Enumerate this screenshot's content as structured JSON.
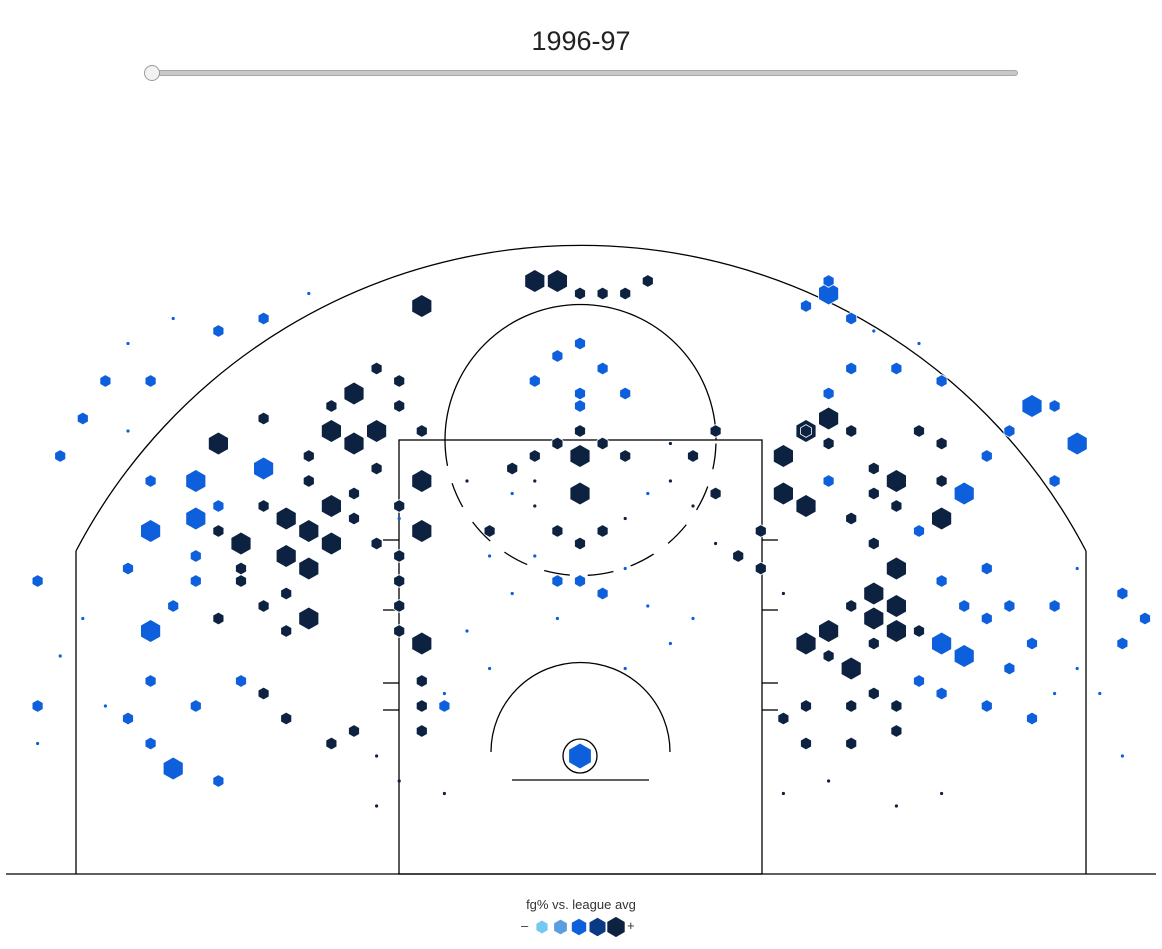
{
  "season": {
    "label": "1996-97",
    "slider_position": 0.0
  },
  "legend": {
    "title": "fg% vs. league avg",
    "minus": "–",
    "plus": "+",
    "swatches": [
      "#74c8f2",
      "#5b9ee0",
      "#0e5fdc",
      "#0a3a85",
      "#0d2240"
    ]
  },
  "colors": {
    "below": "#0e5fdc",
    "above": "#0d2240",
    "court_lines": "#000000"
  },
  "chart_data": {
    "type": "hexbin",
    "x_unit": "ft",
    "y_unit": "ft",
    "xlim": [
      -25,
      25
    ],
    "ylim": [
      -4,
      38
    ],
    "legend_placement": "bottom-center",
    "size_meaning": "shot frequency",
    "color_meaning": "fg% vs. league avg",
    "shots": [
      [
        0,
        0,
        4,
        "b"
      ],
      [
        -13,
        13,
        2,
        "k"
      ],
      [
        -12,
        15,
        3,
        "k"
      ],
      [
        -13,
        16,
        3,
        "k"
      ],
      [
        -11,
        17,
        3,
        "k"
      ],
      [
        -12,
        18,
        3,
        "k"
      ],
      [
        -13,
        19,
        3,
        "k"
      ],
      [
        -14,
        20,
        2,
        "k"
      ],
      [
        -12,
        11,
        3,
        "k"
      ],
      [
        -13,
        10,
        2,
        "k"
      ],
      [
        -14,
        12,
        2,
        "k"
      ],
      [
        -15,
        14,
        2,
        "k"
      ],
      [
        -16,
        11,
        2,
        "k"
      ],
      [
        -11,
        20,
        3,
        "k"
      ],
      [
        -10,
        19,
        2,
        "k"
      ],
      [
        -9,
        17,
        2,
        "k"
      ],
      [
        -10,
        21,
        2,
        "k"
      ],
      [
        -12,
        22,
        2,
        "k"
      ],
      [
        -9,
        23,
        2,
        "k"
      ],
      [
        -8,
        20,
        2,
        "k"
      ],
      [
        -10,
        25,
        3,
        "k"
      ],
      [
        -11,
        26,
        3,
        "k"
      ],
      [
        -12,
        24,
        2,
        "k"
      ],
      [
        -9,
        26,
        3,
        "k"
      ],
      [
        -16,
        25,
        3,
        "k"
      ],
      [
        -14,
        27,
        2,
        "k"
      ],
      [
        -11,
        28,
        2,
        "k"
      ],
      [
        -10,
        29,
        3,
        "k"
      ],
      [
        -9,
        31,
        2,
        "k"
      ],
      [
        -8,
        30,
        2,
        "k"
      ],
      [
        -8,
        28,
        2,
        "k"
      ],
      [
        -7,
        26,
        2,
        "k"
      ],
      [
        -7,
        22,
        3,
        "k"
      ],
      [
        -7,
        18,
        3,
        "k"
      ],
      [
        -16,
        18,
        2,
        "k"
      ],
      [
        -15,
        17,
        3,
        "k"
      ],
      [
        -15,
        15,
        2,
        "k"
      ],
      [
        -17,
        16,
        2,
        "b"
      ],
      [
        -17,
        14,
        2,
        "b"
      ],
      [
        -16,
        20,
        2,
        "b"
      ],
      [
        -17,
        22,
        3,
        "b"
      ],
      [
        -14,
        23,
        3,
        "b"
      ],
      [
        -19,
        10,
        3,
        "b"
      ],
      [
        -18,
        12,
        2,
        "b"
      ],
      [
        -20,
        15,
        2,
        "b"
      ],
      [
        -19,
        18,
        3,
        "b"
      ],
      [
        -17,
        19,
        3,
        "b"
      ],
      [
        -19,
        22,
        2,
        "b"
      ],
      [
        -20,
        26,
        1,
        "b"
      ],
      [
        -19,
        30,
        2,
        "b"
      ],
      [
        -21,
        30,
        2,
        "b"
      ],
      [
        -22,
        27,
        2,
        "b"
      ],
      [
        -23,
        24,
        2,
        "b"
      ],
      [
        -18,
        35,
        1,
        "b"
      ],
      [
        -20,
        33,
        1,
        "b"
      ],
      [
        -16,
        34,
        2,
        "b"
      ],
      [
        -14,
        35,
        2,
        "b"
      ],
      [
        -12,
        37,
        1,
        "b"
      ],
      [
        -7,
        36,
        3,
        "k"
      ],
      [
        -2,
        38,
        3,
        "k"
      ],
      [
        -1,
        38,
        3,
        "k"
      ],
      [
        0,
        37,
        2,
        "k"
      ],
      [
        1,
        37,
        2,
        "k"
      ],
      [
        2,
        37,
        2,
        "k"
      ],
      [
        3,
        38,
        2,
        "k"
      ],
      [
        -1,
        32,
        2,
        "b"
      ],
      [
        0,
        33,
        2,
        "b"
      ],
      [
        1,
        31,
        2,
        "b"
      ],
      [
        -2,
        30,
        2,
        "b"
      ],
      [
        0,
        29,
        2,
        "b"
      ],
      [
        2,
        29,
        2,
        "b"
      ],
      [
        0,
        28,
        2,
        "b"
      ],
      [
        0,
        26,
        2,
        "k"
      ],
      [
        -1,
        25,
        2,
        "k"
      ],
      [
        1,
        25,
        2,
        "k"
      ],
      [
        0,
        24,
        3,
        "k"
      ],
      [
        -2,
        24,
        2,
        "k"
      ],
      [
        2,
        24,
        2,
        "k"
      ],
      [
        -3,
        23,
        2,
        "k"
      ],
      [
        4,
        25,
        1,
        "k"
      ],
      [
        0,
        21,
        3,
        "k"
      ],
      [
        -2,
        20,
        1,
        "k"
      ],
      [
        2,
        19,
        1,
        "k"
      ],
      [
        -1,
        18,
        2,
        "k"
      ],
      [
        1,
        18,
        2,
        "k"
      ],
      [
        0,
        17,
        2,
        "k"
      ],
      [
        -4,
        18,
        2,
        "k"
      ],
      [
        -1,
        14,
        2,
        "b"
      ],
      [
        0,
        14,
        2,
        "b"
      ],
      [
        -4,
        16,
        1,
        "b"
      ],
      [
        1,
        13,
        2,
        "b"
      ],
      [
        -8,
        19,
        1,
        "b"
      ],
      [
        6,
        17,
        1,
        "k"
      ],
      [
        5,
        20,
        1,
        "k"
      ],
      [
        -8,
        14,
        2,
        "k"
      ],
      [
        -8,
        10,
        2,
        "k"
      ],
      [
        -7,
        9,
        3,
        "k"
      ],
      [
        -8,
        12,
        2,
        "k"
      ],
      [
        -7,
        6,
        2,
        "k"
      ],
      [
        -7,
        4,
        2,
        "k"
      ],
      [
        -8,
        16,
        2,
        "k"
      ],
      [
        -6,
        5,
        1,
        "b"
      ],
      [
        -7,
        2,
        2,
        "k"
      ],
      [
        -6,
        4,
        2,
        "b"
      ],
      [
        -9,
        0,
        1,
        "k"
      ],
      [
        -10,
        2,
        2,
        "k"
      ],
      [
        -11,
        1,
        2,
        "k"
      ],
      [
        -13,
        3,
        2,
        "k"
      ],
      [
        -14,
        5,
        2,
        "k"
      ],
      [
        9,
        24,
        3,
        "k"
      ],
      [
        10,
        26,
        3,
        "k"
      ],
      [
        11,
        25,
        2,
        "k"
      ],
      [
        9,
        21,
        3,
        "k"
      ],
      [
        10,
        20,
        3,
        "k"
      ],
      [
        11,
        22,
        2,
        "b"
      ],
      [
        13,
        23,
        2,
        "k"
      ],
      [
        13,
        21,
        2,
        "k"
      ],
      [
        14,
        20,
        2,
        "k"
      ],
      [
        15,
        18,
        2,
        "b"
      ],
      [
        16,
        19,
        3,
        "k"
      ],
      [
        12,
        19,
        2,
        "k"
      ],
      [
        13,
        17,
        2,
        "k"
      ],
      [
        14,
        15,
        3,
        "k"
      ],
      [
        13,
        13,
        3,
        "k"
      ],
      [
        14,
        12,
        3,
        "k"
      ],
      [
        13,
        11,
        3,
        "k"
      ],
      [
        12,
        12,
        2,
        "k"
      ],
      [
        11,
        10,
        3,
        "k"
      ],
      [
        10,
        9,
        3,
        "k"
      ],
      [
        11,
        8,
        2,
        "k"
      ],
      [
        12,
        7,
        3,
        "k"
      ],
      [
        13,
        9,
        2,
        "k"
      ],
      [
        14,
        10,
        3,
        "k"
      ],
      [
        15,
        10,
        2,
        "k"
      ],
      [
        16,
        9,
        3,
        "b"
      ],
      [
        17,
        8,
        3,
        "b"
      ],
      [
        15,
        6,
        2,
        "b"
      ],
      [
        16,
        5,
        2,
        "b"
      ],
      [
        17,
        12,
        2,
        "b"
      ],
      [
        18,
        15,
        2,
        "b"
      ],
      [
        19,
        12,
        2,
        "b"
      ],
      [
        18,
        11,
        2,
        "b"
      ],
      [
        16,
        14,
        2,
        "b"
      ],
      [
        19,
        7,
        2,
        "b"
      ],
      [
        18,
        4,
        2,
        "b"
      ],
      [
        20,
        3,
        2,
        "b"
      ],
      [
        21,
        5,
        1,
        "b"
      ],
      [
        22,
        7,
        1,
        "b"
      ],
      [
        20,
        9,
        2,
        "b"
      ],
      [
        21,
        12,
        2,
        "b"
      ],
      [
        22,
        15,
        1,
        "b"
      ],
      [
        17,
        21,
        3,
        "b"
      ],
      [
        18,
        24,
        2,
        "b"
      ],
      [
        19,
        26,
        2,
        "b"
      ],
      [
        20,
        28,
        3,
        "b"
      ],
      [
        21,
        28,
        2,
        "b"
      ],
      [
        22,
        25,
        3,
        "b"
      ],
      [
        21,
        22,
        2,
        "b"
      ],
      [
        11,
        29,
        2,
        "b"
      ],
      [
        12,
        31,
        2,
        "b"
      ],
      [
        14,
        31,
        2,
        "b"
      ],
      [
        16,
        30,
        2,
        "b"
      ],
      [
        15,
        33,
        1,
        "b"
      ],
      [
        13,
        34,
        1,
        "b"
      ],
      [
        12,
        35,
        2,
        "b"
      ],
      [
        11,
        37,
        3,
        "b"
      ],
      [
        11,
        38,
        2,
        "b"
      ],
      [
        10,
        36,
        2,
        "b"
      ],
      [
        11,
        27,
        3,
        "k"
      ],
      [
        10,
        26,
        2,
        "k"
      ],
      [
        12,
        26,
        2,
        "k"
      ],
      [
        15,
        26,
        2,
        "k"
      ],
      [
        16,
        25,
        2,
        "k"
      ],
      [
        16,
        22,
        2,
        "k"
      ],
      [
        14,
        22,
        3,
        "k"
      ],
      [
        9,
        3,
        2,
        "k"
      ],
      [
        10,
        4,
        2,
        "k"
      ],
      [
        12,
        4,
        2,
        "k"
      ],
      [
        13,
        5,
        2,
        "k"
      ],
      [
        14,
        4,
        2,
        "k"
      ],
      [
        14,
        2,
        2,
        "k"
      ],
      [
        12,
        1,
        2,
        "k"
      ],
      [
        10,
        1,
        2,
        "k"
      ],
      [
        9,
        13,
        1,
        "k"
      ],
      [
        8,
        18,
        2,
        "k"
      ],
      [
        8,
        15,
        2,
        "k"
      ],
      [
        7,
        16,
        2,
        "k"
      ],
      [
        6,
        26,
        2,
        "k"
      ],
      [
        6,
        21,
        2,
        "k"
      ],
      [
        5,
        24,
        2,
        "k"
      ],
      [
        4,
        22,
        1,
        "k"
      ],
      [
        -19,
        1,
        2,
        "b"
      ],
      [
        -20,
        3,
        2,
        "b"
      ],
      [
        -21,
        4,
        1,
        "b"
      ],
      [
        -19,
        6,
        2,
        "b"
      ],
      [
        -17,
        4,
        2,
        "b"
      ],
      [
        -15,
        6,
        2,
        "b"
      ],
      [
        -18,
        -1,
        3,
        "b"
      ],
      [
        -16,
        -2,
        2,
        "b"
      ],
      [
        -24,
        14,
        2,
        "b"
      ],
      [
        -24,
        4,
        2,
        "b"
      ],
      [
        -22,
        11,
        1,
        "b"
      ],
      [
        -24,
        1,
        1,
        "b"
      ],
      [
        -23,
        8,
        1,
        "b"
      ],
      [
        24,
        13,
        2,
        "b"
      ],
      [
        25,
        11,
        2,
        "b"
      ],
      [
        24,
        9,
        2,
        "b"
      ],
      [
        23,
        5,
        1,
        "b"
      ],
      [
        24,
        0,
        1,
        "b"
      ],
      [
        -6,
        -3,
        1,
        "k"
      ],
      [
        -8,
        -2,
        1,
        "k"
      ],
      [
        -9,
        -4,
        1,
        "k"
      ],
      [
        9,
        -3,
        1,
        "k"
      ],
      [
        11,
        -2,
        1,
        "k"
      ],
      [
        14,
        -4,
        1,
        "k"
      ],
      [
        16,
        -3,
        1,
        "k"
      ],
      [
        -3,
        13,
        1,
        "b"
      ],
      [
        3,
        12,
        1,
        "b"
      ],
      [
        -1,
        11,
        1,
        "b"
      ],
      [
        5,
        11,
        1,
        "b"
      ],
      [
        -5,
        10,
        1,
        "b"
      ],
      [
        4,
        9,
        1,
        "b"
      ],
      [
        2,
        7,
        1,
        "b"
      ],
      [
        -4,
        7,
        1,
        "b"
      ],
      [
        -2,
        16,
        1,
        "b"
      ],
      [
        2,
        15,
        1,
        "b"
      ],
      [
        -3,
        21,
        1,
        "b"
      ],
      [
        3,
        21,
        1,
        "b"
      ],
      [
        -5,
        22,
        1,
        "k"
      ],
      [
        -2,
        22,
        1,
        "k"
      ]
    ]
  }
}
